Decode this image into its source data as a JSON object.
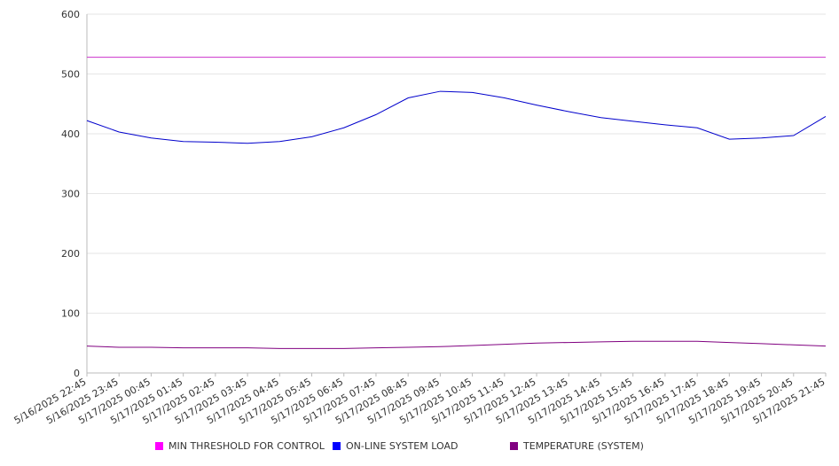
{
  "chart_data": {
    "type": "line",
    "x": [
      "5/16/2025 22:45",
      "5/16/2025 23:45",
      "5/17/2025 00:45",
      "5/17/2025 01:45",
      "5/17/2025 02:45",
      "5/17/2025 03:45",
      "5/17/2025 04:45",
      "5/17/2025 05:45",
      "5/17/2025 06:45",
      "5/17/2025 07:45",
      "5/17/2025 08:45",
      "5/17/2025 09:45",
      "5/17/2025 10:45",
      "5/17/2025 11:45",
      "5/17/2025 12:45",
      "5/17/2025 13:45",
      "5/17/2025 14:45",
      "5/17/2025 15:45",
      "5/17/2025 16:45",
      "5/17/2025 17:45",
      "5/17/2025 18:45",
      "5/17/2025 19:45",
      "5/17/2025 20:45",
      "5/17/2025 21:45"
    ],
    "ylim": [
      0,
      600
    ],
    "yticks": [
      0,
      100,
      200,
      300,
      400,
      500,
      600
    ],
    "grid": true,
    "legend_position": "bottom",
    "series": [
      {
        "name": "MIN THRESHOLD FOR CONTROL",
        "color": "#cc33cc",
        "values": [
          528,
          528,
          528,
          528,
          528,
          528,
          528,
          528,
          528,
          528,
          528,
          528,
          528,
          528,
          528,
          528,
          528,
          528,
          528,
          528,
          528,
          528,
          528,
          528
        ]
      },
      {
        "name": "ON-LINE SYSTEM LOAD",
        "color": "#0000cc",
        "values": [
          422,
          403,
          393,
          387,
          386,
          384,
          387,
          395,
          410,
          432,
          460,
          471,
          469,
          460,
          448,
          437,
          427,
          421,
          415,
          410,
          391,
          393,
          397,
          429
        ]
      },
      {
        "name": "TEMPERATURE (SYSTEM)",
        "color": "#800080",
        "values": [
          45,
          43,
          43,
          42,
          42,
          42,
          41,
          41,
          41,
          42,
          43,
          44,
          46,
          48,
          50,
          51,
          52,
          53,
          53,
          53,
          51,
          49,
          47,
          45
        ]
      }
    ],
    "legend_swatches": [
      "#ff00ff",
      "#0000ff",
      "#800080"
    ]
  }
}
